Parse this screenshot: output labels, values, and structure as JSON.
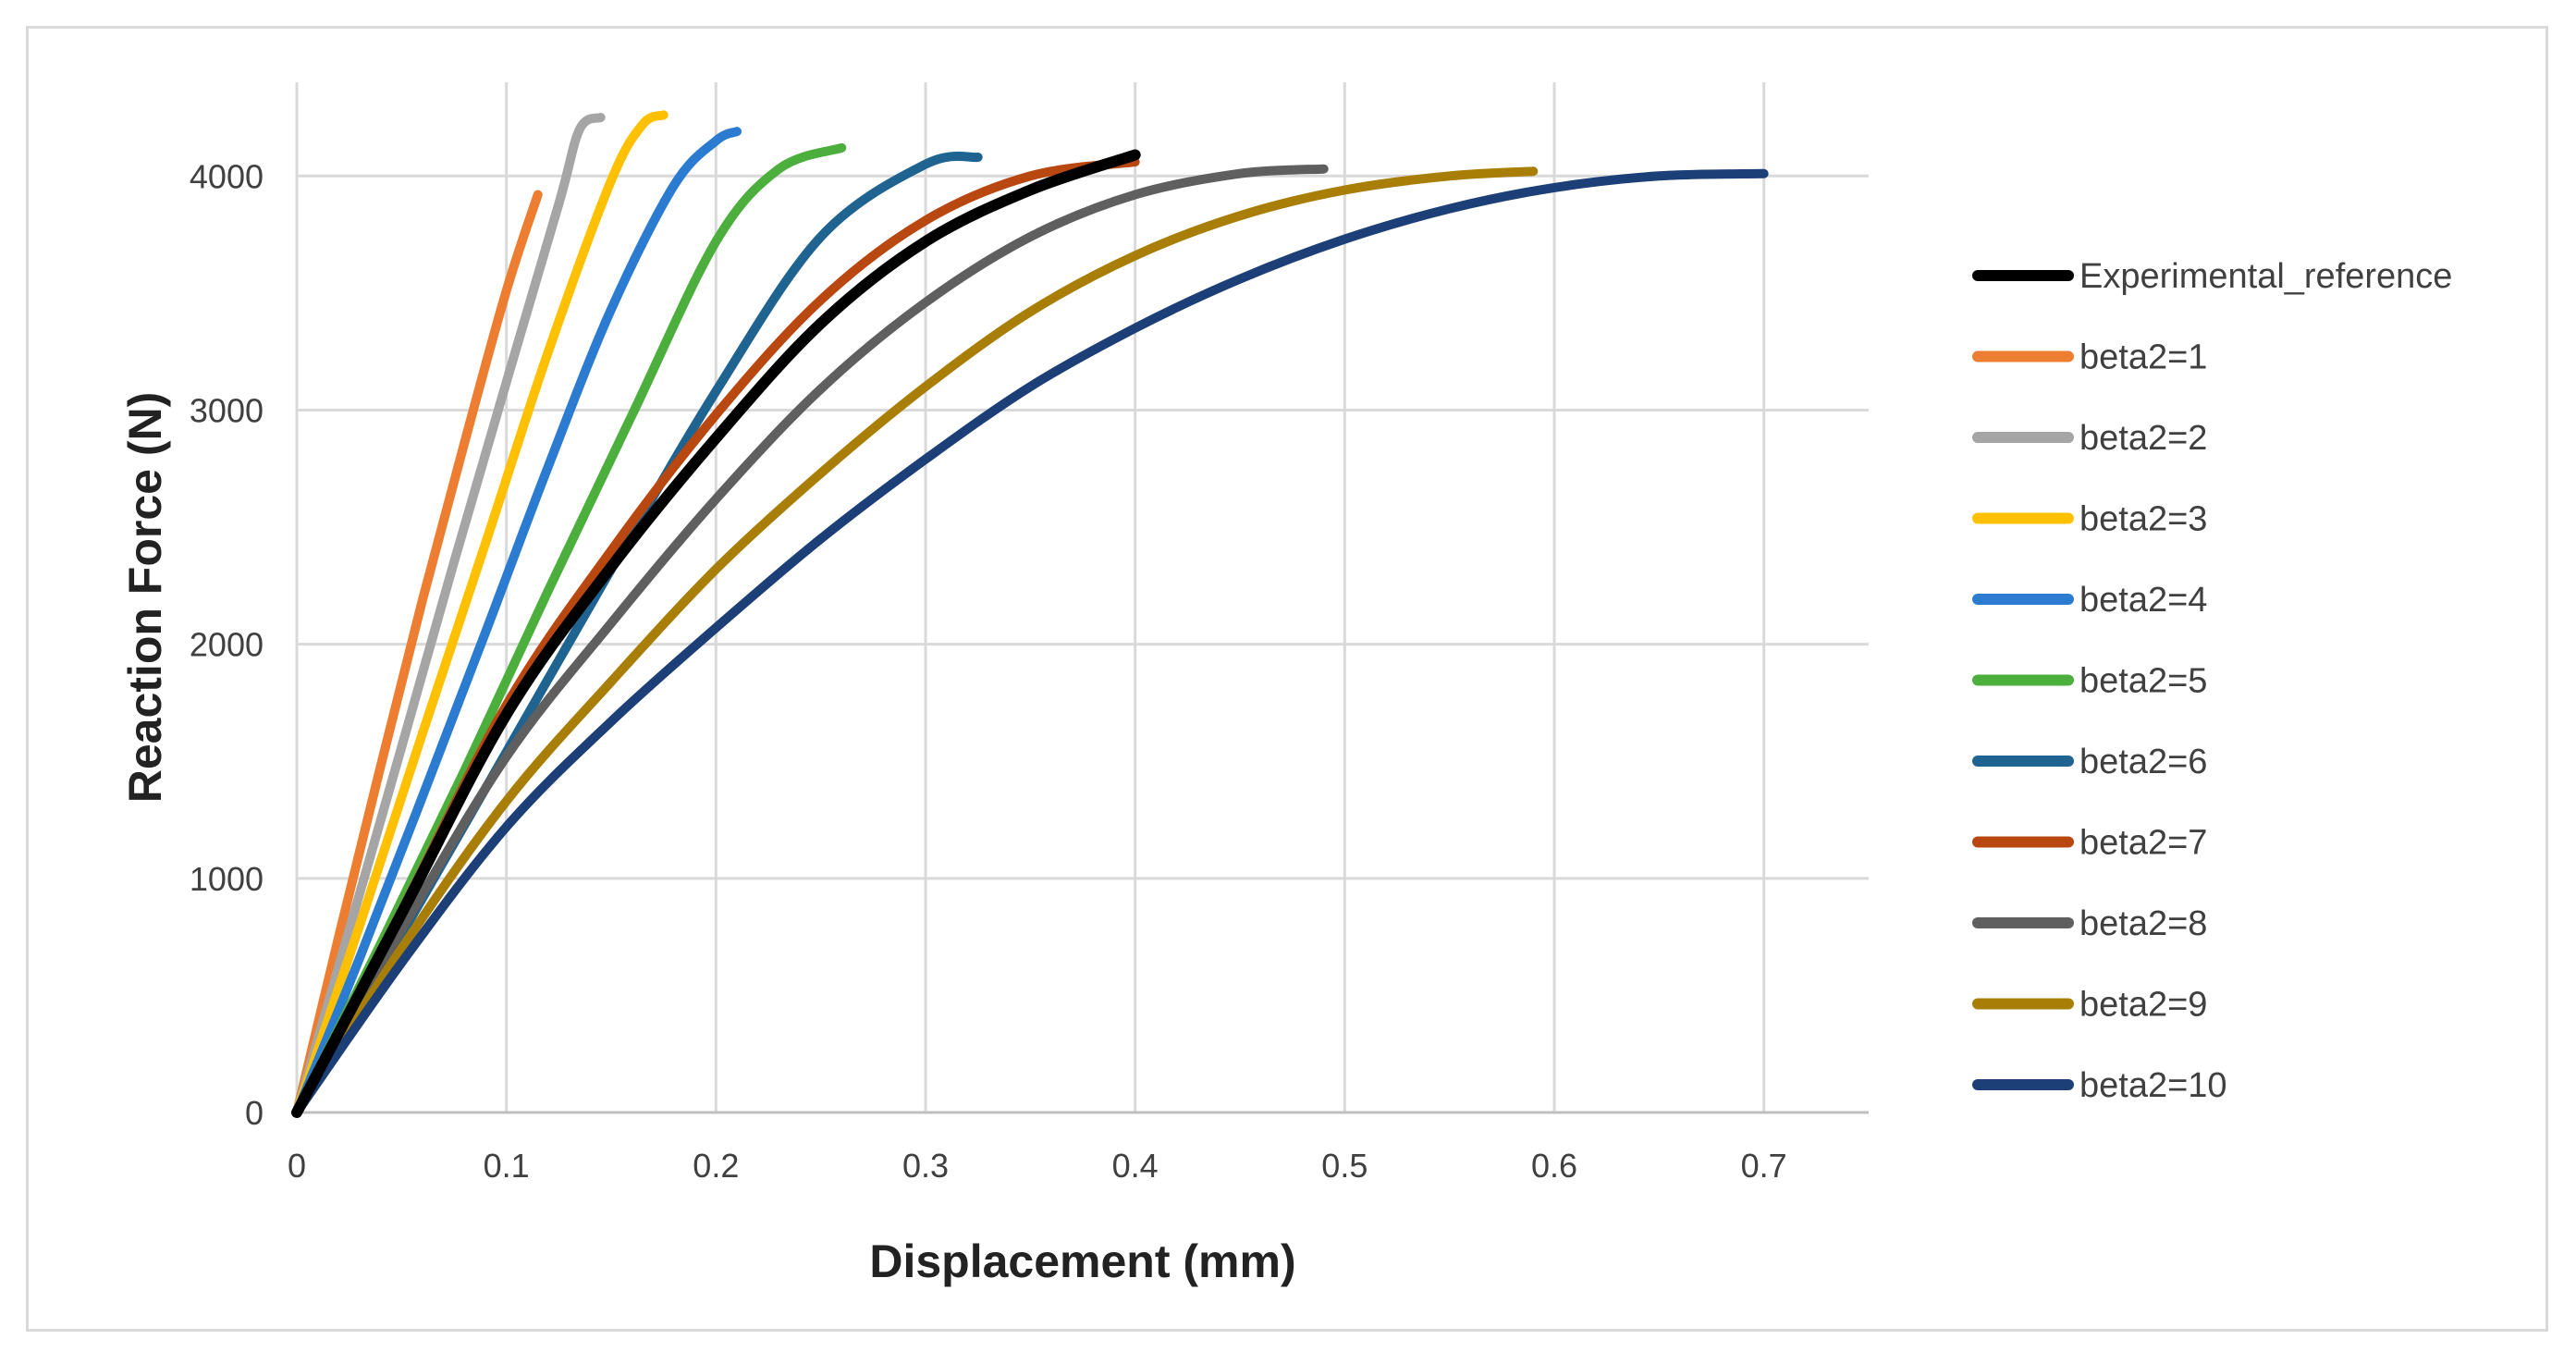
{
  "chart_data": {
    "type": "line",
    "title": "",
    "xlabel": "Displacement (mm)",
    "ylabel": "Reaction Force (N)",
    "xlim": [
      0,
      0.75
    ],
    "ylim": [
      0,
      4400
    ],
    "xticks": [
      0,
      0.1,
      0.2,
      0.3,
      0.4,
      0.5,
      0.6,
      0.7
    ],
    "xtick_labels": [
      "0",
      "0.1",
      "0.2",
      "0.3",
      "0.4",
      "0.5",
      "0.6",
      "0.7"
    ],
    "yticks": [
      0,
      1000,
      2000,
      3000,
      4000
    ],
    "ytick_labels": [
      "0",
      "1000",
      "2000",
      "3000",
      "4000"
    ],
    "grid": true,
    "legend_position": "right",
    "series": [
      {
        "name": "Experimental_reference",
        "color": "#000000",
        "x": [
          0,
          0.05,
          0.1,
          0.15,
          0.2,
          0.25,
          0.3,
          0.35,
          0.4
        ],
        "y": [
          0,
          850,
          1700,
          2330,
          2880,
          3370,
          3720,
          3940,
          4090
        ]
      },
      {
        "name": "beta2=1",
        "color": "#ED7D31",
        "x": [
          0,
          0.02,
          0.04,
          0.06,
          0.08,
          0.1,
          0.115
        ],
        "y": [
          0,
          750,
          1480,
          2190,
          2860,
          3510,
          3920
        ]
      },
      {
        "name": "beta2=2",
        "color": "#A5A5A5",
        "x": [
          0,
          0.025,
          0.05,
          0.075,
          0.1,
          0.125,
          0.135,
          0.145
        ],
        "y": [
          0,
          780,
          1560,
          2350,
          3120,
          3880,
          4200,
          4250
        ]
      },
      {
        "name": "beta2=3",
        "color": "#FFC000",
        "x": [
          0,
          0.03,
          0.06,
          0.09,
          0.12,
          0.15,
          0.165,
          0.175
        ],
        "y": [
          0,
          800,
          1620,
          2430,
          3250,
          3980,
          4220,
          4260
        ]
      },
      {
        "name": "beta2=4",
        "color": "#2B7BD0",
        "x": [
          0,
          0.03,
          0.06,
          0.09,
          0.12,
          0.15,
          0.18,
          0.2,
          0.21
        ],
        "y": [
          0,
          660,
          1350,
          2050,
          2760,
          3430,
          3960,
          4150,
          4190
        ]
      },
      {
        "name": "beta2=5",
        "color": "#4CAF3D",
        "x": [
          0,
          0.04,
          0.08,
          0.12,
          0.16,
          0.2,
          0.23,
          0.26
        ],
        "y": [
          0,
          720,
          1460,
          2230,
          2980,
          3720,
          4030,
          4120
        ]
      },
      {
        "name": "beta2=6",
        "color": "#1F6391",
        "x": [
          0,
          0.05,
          0.1,
          0.15,
          0.2,
          0.25,
          0.3,
          0.325
        ],
        "y": [
          0,
          760,
          1540,
          2320,
          3080,
          3740,
          4050,
          4080
        ]
      },
      {
        "name": "beta2=7",
        "color": "#B84710",
        "x": [
          0,
          0.05,
          0.1,
          0.15,
          0.2,
          0.25,
          0.3,
          0.35,
          0.4
        ],
        "y": [
          0,
          860,
          1740,
          2400,
          2980,
          3470,
          3810,
          4000,
          4060
        ]
      },
      {
        "name": "beta2=8",
        "color": "#5F5F5F",
        "x": [
          0,
          0.05,
          0.1,
          0.15,
          0.2,
          0.25,
          0.3,
          0.35,
          0.4,
          0.45,
          0.49
        ],
        "y": [
          0,
          780,
          1520,
          2090,
          2620,
          3090,
          3460,
          3740,
          3920,
          4010,
          4030
        ]
      },
      {
        "name": "beta2=9",
        "color": "#A97E07",
        "x": [
          0,
          0.05,
          0.1,
          0.15,
          0.2,
          0.25,
          0.3,
          0.35,
          0.4,
          0.45,
          0.5,
          0.55,
          0.59
        ],
        "y": [
          0,
          700,
          1330,
          1840,
          2320,
          2730,
          3100,
          3420,
          3660,
          3830,
          3940,
          4000,
          4020
        ]
      },
      {
        "name": "beta2=10",
        "color": "#1D3F77",
        "x": [
          0,
          0.05,
          0.1,
          0.15,
          0.2,
          0.25,
          0.3,
          0.35,
          0.4,
          0.45,
          0.5,
          0.55,
          0.6,
          0.65,
          0.7
        ],
        "y": [
          0,
          640,
          1220,
          1670,
          2070,
          2450,
          2790,
          3100,
          3350,
          3560,
          3730,
          3860,
          3950,
          4000,
          4010
        ]
      }
    ]
  }
}
